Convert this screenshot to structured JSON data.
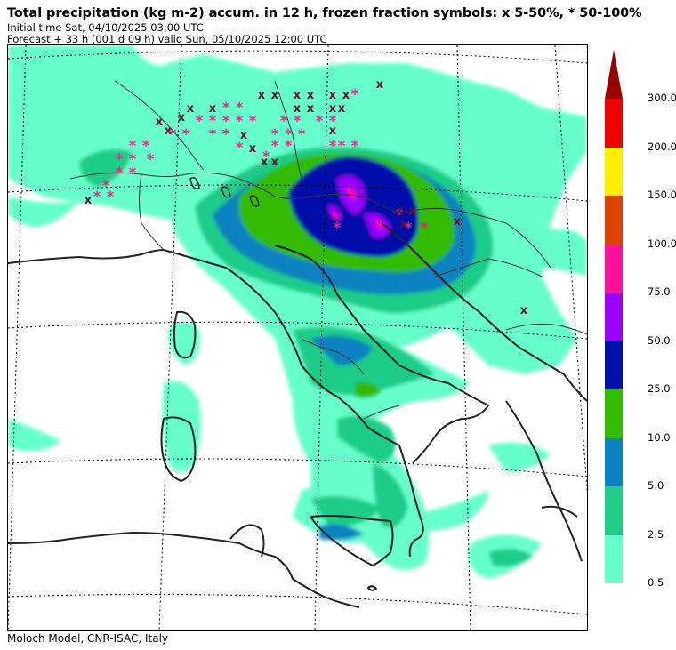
{
  "header": {
    "title": "Total precipitation (kg m-2) accum. in 12 h, frozen fraction symbols: x 5-50%, * 50-100%",
    "initial_time": "Initial time  Sat, 04/10/2025  03:00 UTC",
    "forecast": "Forecast  +  33 h  (001 d 09 h)  valid Sun, 05/10/2025 12:00 UTC"
  },
  "footer": {
    "credit": "Moloch Model, CNR-ISAC, Italy"
  },
  "colorbar": {
    "levels": [
      {
        "label": "0.5",
        "color": "#66ffcc"
      },
      {
        "label": "2.5",
        "color": "#1fcc88"
      },
      {
        "label": "5.0",
        "color": "#0a82c0"
      },
      {
        "label": "10.0",
        "color": "#33bb00"
      },
      {
        "label": "25.0",
        "color": "#0011aa"
      },
      {
        "label": "50.0",
        "color": "#9900ff"
      },
      {
        "label": "75.0",
        "color": "#ff1199"
      },
      {
        "label": "100.0",
        "color": "#dd4400"
      },
      {
        "label": "150.0",
        "color": "#ffee00"
      },
      {
        "label": "200.0",
        "color": "#ee0000"
      },
      {
        "label": "300.0",
        "color": "#990000"
      }
    ]
  },
  "symbols": {
    "mixed": "x",
    "snow": "*",
    "mixed_color": "#661133",
    "snow_color": "#ee2288"
  }
}
